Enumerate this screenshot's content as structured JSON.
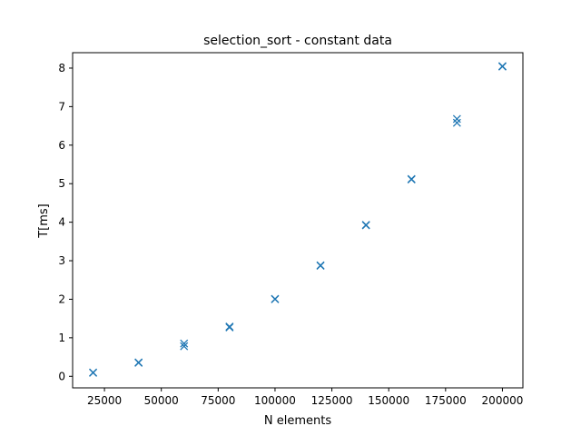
{
  "chart_data": {
    "type": "scatter",
    "title": "selection_sort - constant data",
    "xlabel": "N elements",
    "ylabel": "T[ms]",
    "marker": "x",
    "color": "#1f77b4",
    "xlim": [
      11000,
      209000
    ],
    "ylim": [
      -0.3,
      8.4
    ],
    "xticks": [
      25000,
      50000,
      75000,
      100000,
      125000,
      150000,
      175000,
      200000
    ],
    "xtick_labels": [
      "25000",
      "50000",
      "75000",
      "100000",
      "125000",
      "150000",
      "175000",
      "200000"
    ],
    "yticks": [
      0,
      1,
      2,
      3,
      4,
      5,
      6,
      7,
      8
    ],
    "ytick_labels": [
      "0",
      "1",
      "2",
      "3",
      "4",
      "5",
      "6",
      "7",
      "8"
    ],
    "grid": false,
    "points": [
      {
        "x": 20000,
        "y": 0.09
      },
      {
        "x": 20000,
        "y": 0.1
      },
      {
        "x": 40000,
        "y": 0.35
      },
      {
        "x": 40000,
        "y": 0.36
      },
      {
        "x": 60000,
        "y": 0.78
      },
      {
        "x": 60000,
        "y": 0.85
      },
      {
        "x": 80000,
        "y": 1.27
      },
      {
        "x": 80000,
        "y": 1.29
      },
      {
        "x": 100000,
        "y": 2.0
      },
      {
        "x": 100000,
        "y": 2.01
      },
      {
        "x": 120000,
        "y": 2.87
      },
      {
        "x": 120000,
        "y": 2.88
      },
      {
        "x": 140000,
        "y": 3.92
      },
      {
        "x": 140000,
        "y": 3.93
      },
      {
        "x": 160000,
        "y": 5.11
      },
      {
        "x": 160000,
        "y": 5.12
      },
      {
        "x": 180000,
        "y": 6.58
      },
      {
        "x": 180000,
        "y": 6.68
      },
      {
        "x": 200000,
        "y": 8.04
      },
      {
        "x": 200000,
        "y": 8.05
      }
    ]
  }
}
